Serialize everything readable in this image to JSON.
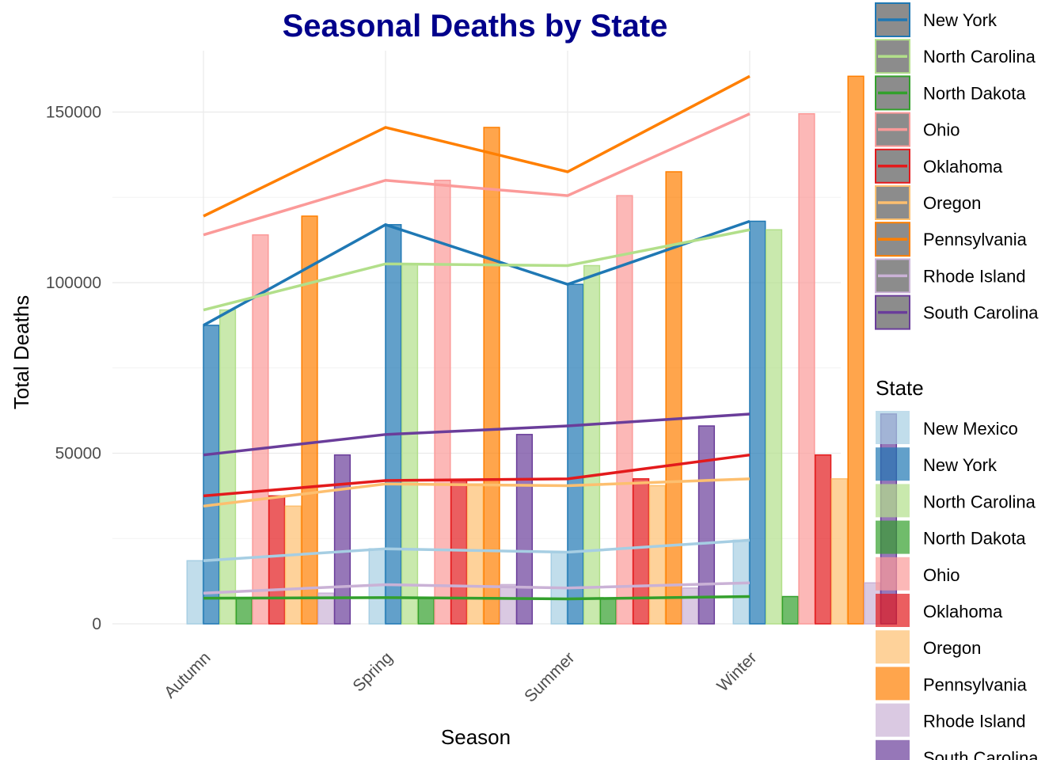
{
  "chart_data": {
    "type": "bar",
    "title": "Seasonal Deaths by State",
    "xlabel": "Season",
    "ylabel": "Total Deaths",
    "ylim": [
      0,
      168000
    ],
    "yticks": [
      0,
      50000,
      100000,
      150000
    ],
    "ytick_labels": [
      "0",
      "50000",
      "100000",
      "150000"
    ],
    "grid": true,
    "categories": [
      "Autumn",
      "Spring",
      "Summer",
      "Winter"
    ],
    "series": [
      {
        "name": "New Mexico",
        "fill": "#A6CEE3",
        "line": "#A6CEE3",
        "values": [
          18500,
          22000,
          21000,
          24500
        ]
      },
      {
        "name": "New York",
        "fill": "#1F78B4",
        "line": "#1F78B4",
        "values": [
          87500,
          117000,
          99500,
          118000
        ]
      },
      {
        "name": "North Carolina",
        "fill": "#B2DF8A",
        "line": "#B2DF8A",
        "values": [
          92000,
          105500,
          105000,
          115500
        ]
      },
      {
        "name": "North Dakota",
        "fill": "#33A02C",
        "line": "#33A02C",
        "values": [
          7500,
          7700,
          7300,
          8000
        ]
      },
      {
        "name": "Ohio",
        "fill": "#FB9A99",
        "line": "#FB9A99",
        "values": [
          114000,
          130000,
          125500,
          149500
        ]
      },
      {
        "name": "Oklahoma",
        "fill": "#E31A1C",
        "line": "#E31A1C",
        "values": [
          37500,
          42000,
          42500,
          49500
        ]
      },
      {
        "name": "Oregon",
        "fill": "#FDBF6F",
        "line": "#FDBF6F",
        "values": [
          34500,
          41000,
          40500,
          42500
        ]
      },
      {
        "name": "Pennsylvania",
        "fill": "#FF7F00",
        "line": "#FF7F00",
        "values": [
          119500,
          145500,
          132500,
          160500
        ]
      },
      {
        "name": "Rhode Island",
        "fill": "#CAB2D6",
        "line": "#CAB2D6",
        "values": [
          9000,
          11500,
          10500,
          12000
        ]
      },
      {
        "name": "South Carolina",
        "fill": "#6A3D9A",
        "line": "#6A3D9A",
        "values": [
          49500,
          55500,
          58000,
          61500
        ]
      }
    ],
    "legend_lines": {
      "swatch_color": "#8C8C8C",
      "entries": [
        "New York",
        "North Carolina",
        "North Dakota",
        "Ohio",
        "Oklahoma",
        "Oregon",
        "Pennsylvania",
        "Rhode Island",
        "South Carolina"
      ]
    },
    "legend_bars": {
      "title": "State",
      "entries": [
        "New Mexico",
        "New York",
        "North Carolina",
        "North Dakota",
        "Ohio",
        "Oklahoma",
        "Oregon",
        "Pennsylvania",
        "Rhode Island",
        "South Carolina"
      ]
    },
    "legend_position": "right"
  }
}
